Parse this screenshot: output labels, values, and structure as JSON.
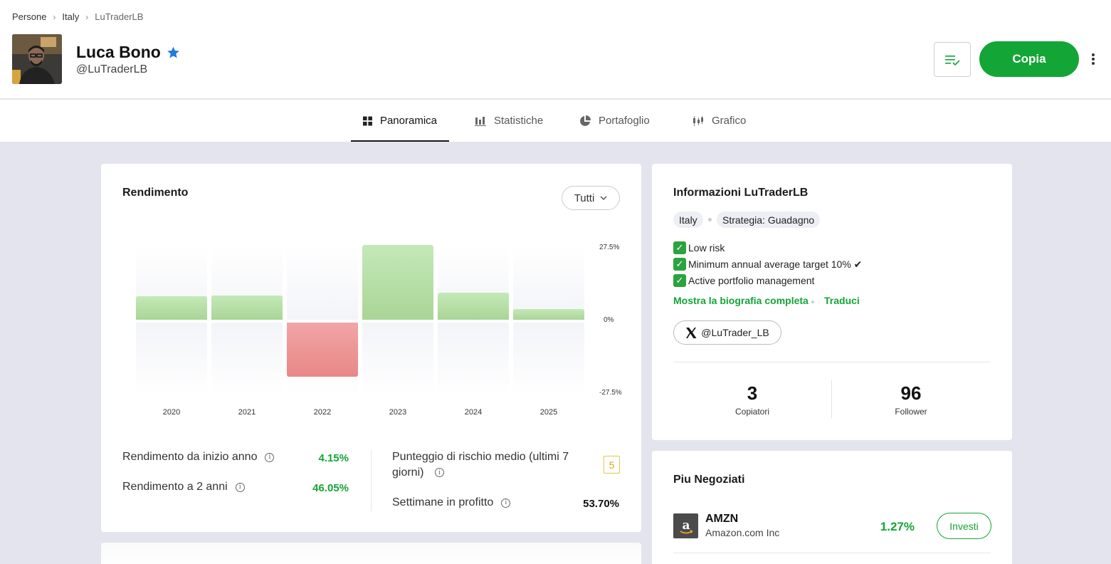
{
  "breadcrumb": [
    "Persone",
    "Italy",
    "LuTraderLB"
  ],
  "profile": {
    "name": "Luca Bono",
    "handle": "@LuTraderLB"
  },
  "actions": {
    "copy_label": "Copia"
  },
  "tabs": [
    {
      "label": "Panoramica",
      "icon": "grid-icon",
      "active": true
    },
    {
      "label": "Statistiche",
      "icon": "bar-chart-icon",
      "active": false
    },
    {
      "label": "Portafoglio",
      "icon": "pie-chart-icon",
      "active": false
    },
    {
      "label": "Grafico",
      "icon": "candlestick-icon",
      "active": false
    }
  ],
  "performance": {
    "title": "Rendimento",
    "filter": "Tutti",
    "stats": {
      "ytd_label": "Rendimento da inizio anno",
      "ytd_value": "4.15%",
      "two_year_label": "Rendimento a 2 anni",
      "two_year_value": "46.05%",
      "risk_label": "Punteggio di rischio medio (ultimi 7 giorni)",
      "risk_value": "5",
      "profit_weeks_label": "Settimane in profitto",
      "profit_weeks_value": "53.70%"
    }
  },
  "chart_data": {
    "type": "bar",
    "categories": [
      "2020",
      "2021",
      "2022",
      "2023",
      "2024",
      "2025"
    ],
    "values": [
      8.8,
      9.2,
      -20.5,
      28.3,
      10.3,
      4.15
    ],
    "ylim": [
      -27.5,
      27.5
    ],
    "y_ticks": [
      "27.5%",
      "0%",
      "-27.5%"
    ],
    "colors": {
      "positive": "#b5de a6",
      "negative": "#ec9393"
    }
  },
  "about": {
    "title": "Informazioni LuTraderLB",
    "chips": [
      "Italy",
      "Strategia: Guadagno"
    ],
    "bio": [
      "Low risk",
      "Minimum annual average target 10% ✔",
      "Active portfolio management"
    ],
    "show_bio": "Mostra la biografia completa",
    "translate": "Traduci",
    "x_handle": "@LuTrader_LB",
    "copiers_value": "3",
    "copiers_label": "Copiatori",
    "followers_value": "96",
    "followers_label": "Follower"
  },
  "most_traded": {
    "title": "Piu Negoziati",
    "items": [
      {
        "ticker": "AMZN",
        "name": "Amazon.com Inc",
        "change": "1.27%",
        "action": "Investi"
      }
    ]
  }
}
